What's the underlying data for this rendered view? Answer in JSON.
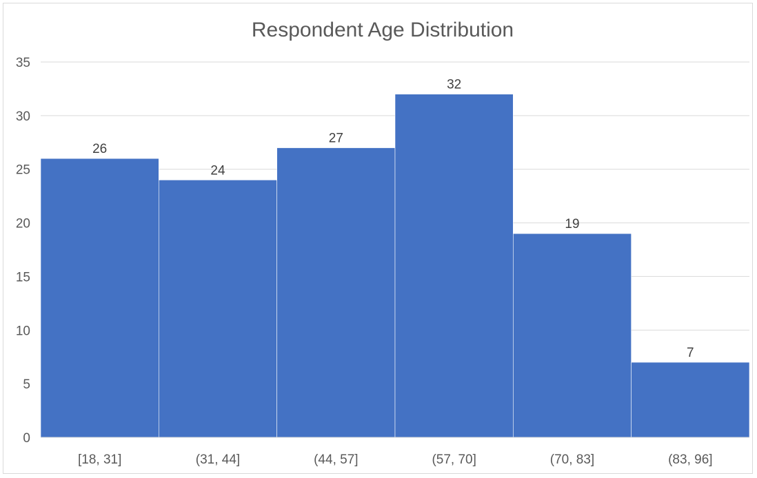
{
  "chart_data": {
    "type": "bar",
    "title": "Respondent Age Distribution",
    "xlabel": "",
    "ylabel": "",
    "categories": [
      "[18, 31]",
      "(31, 44]",
      "(44, 57]",
      "(57, 70]",
      "(70, 83]",
      "(83, 96]"
    ],
    "values": [
      26,
      24,
      27,
      32,
      19,
      7
    ],
    "ylim": [
      0,
      35
    ],
    "yticks": [
      0,
      5,
      10,
      15,
      20,
      25,
      30,
      35
    ],
    "grid": true,
    "legend": "none",
    "bar_color": "#4472C4",
    "gap_width": 0
  }
}
